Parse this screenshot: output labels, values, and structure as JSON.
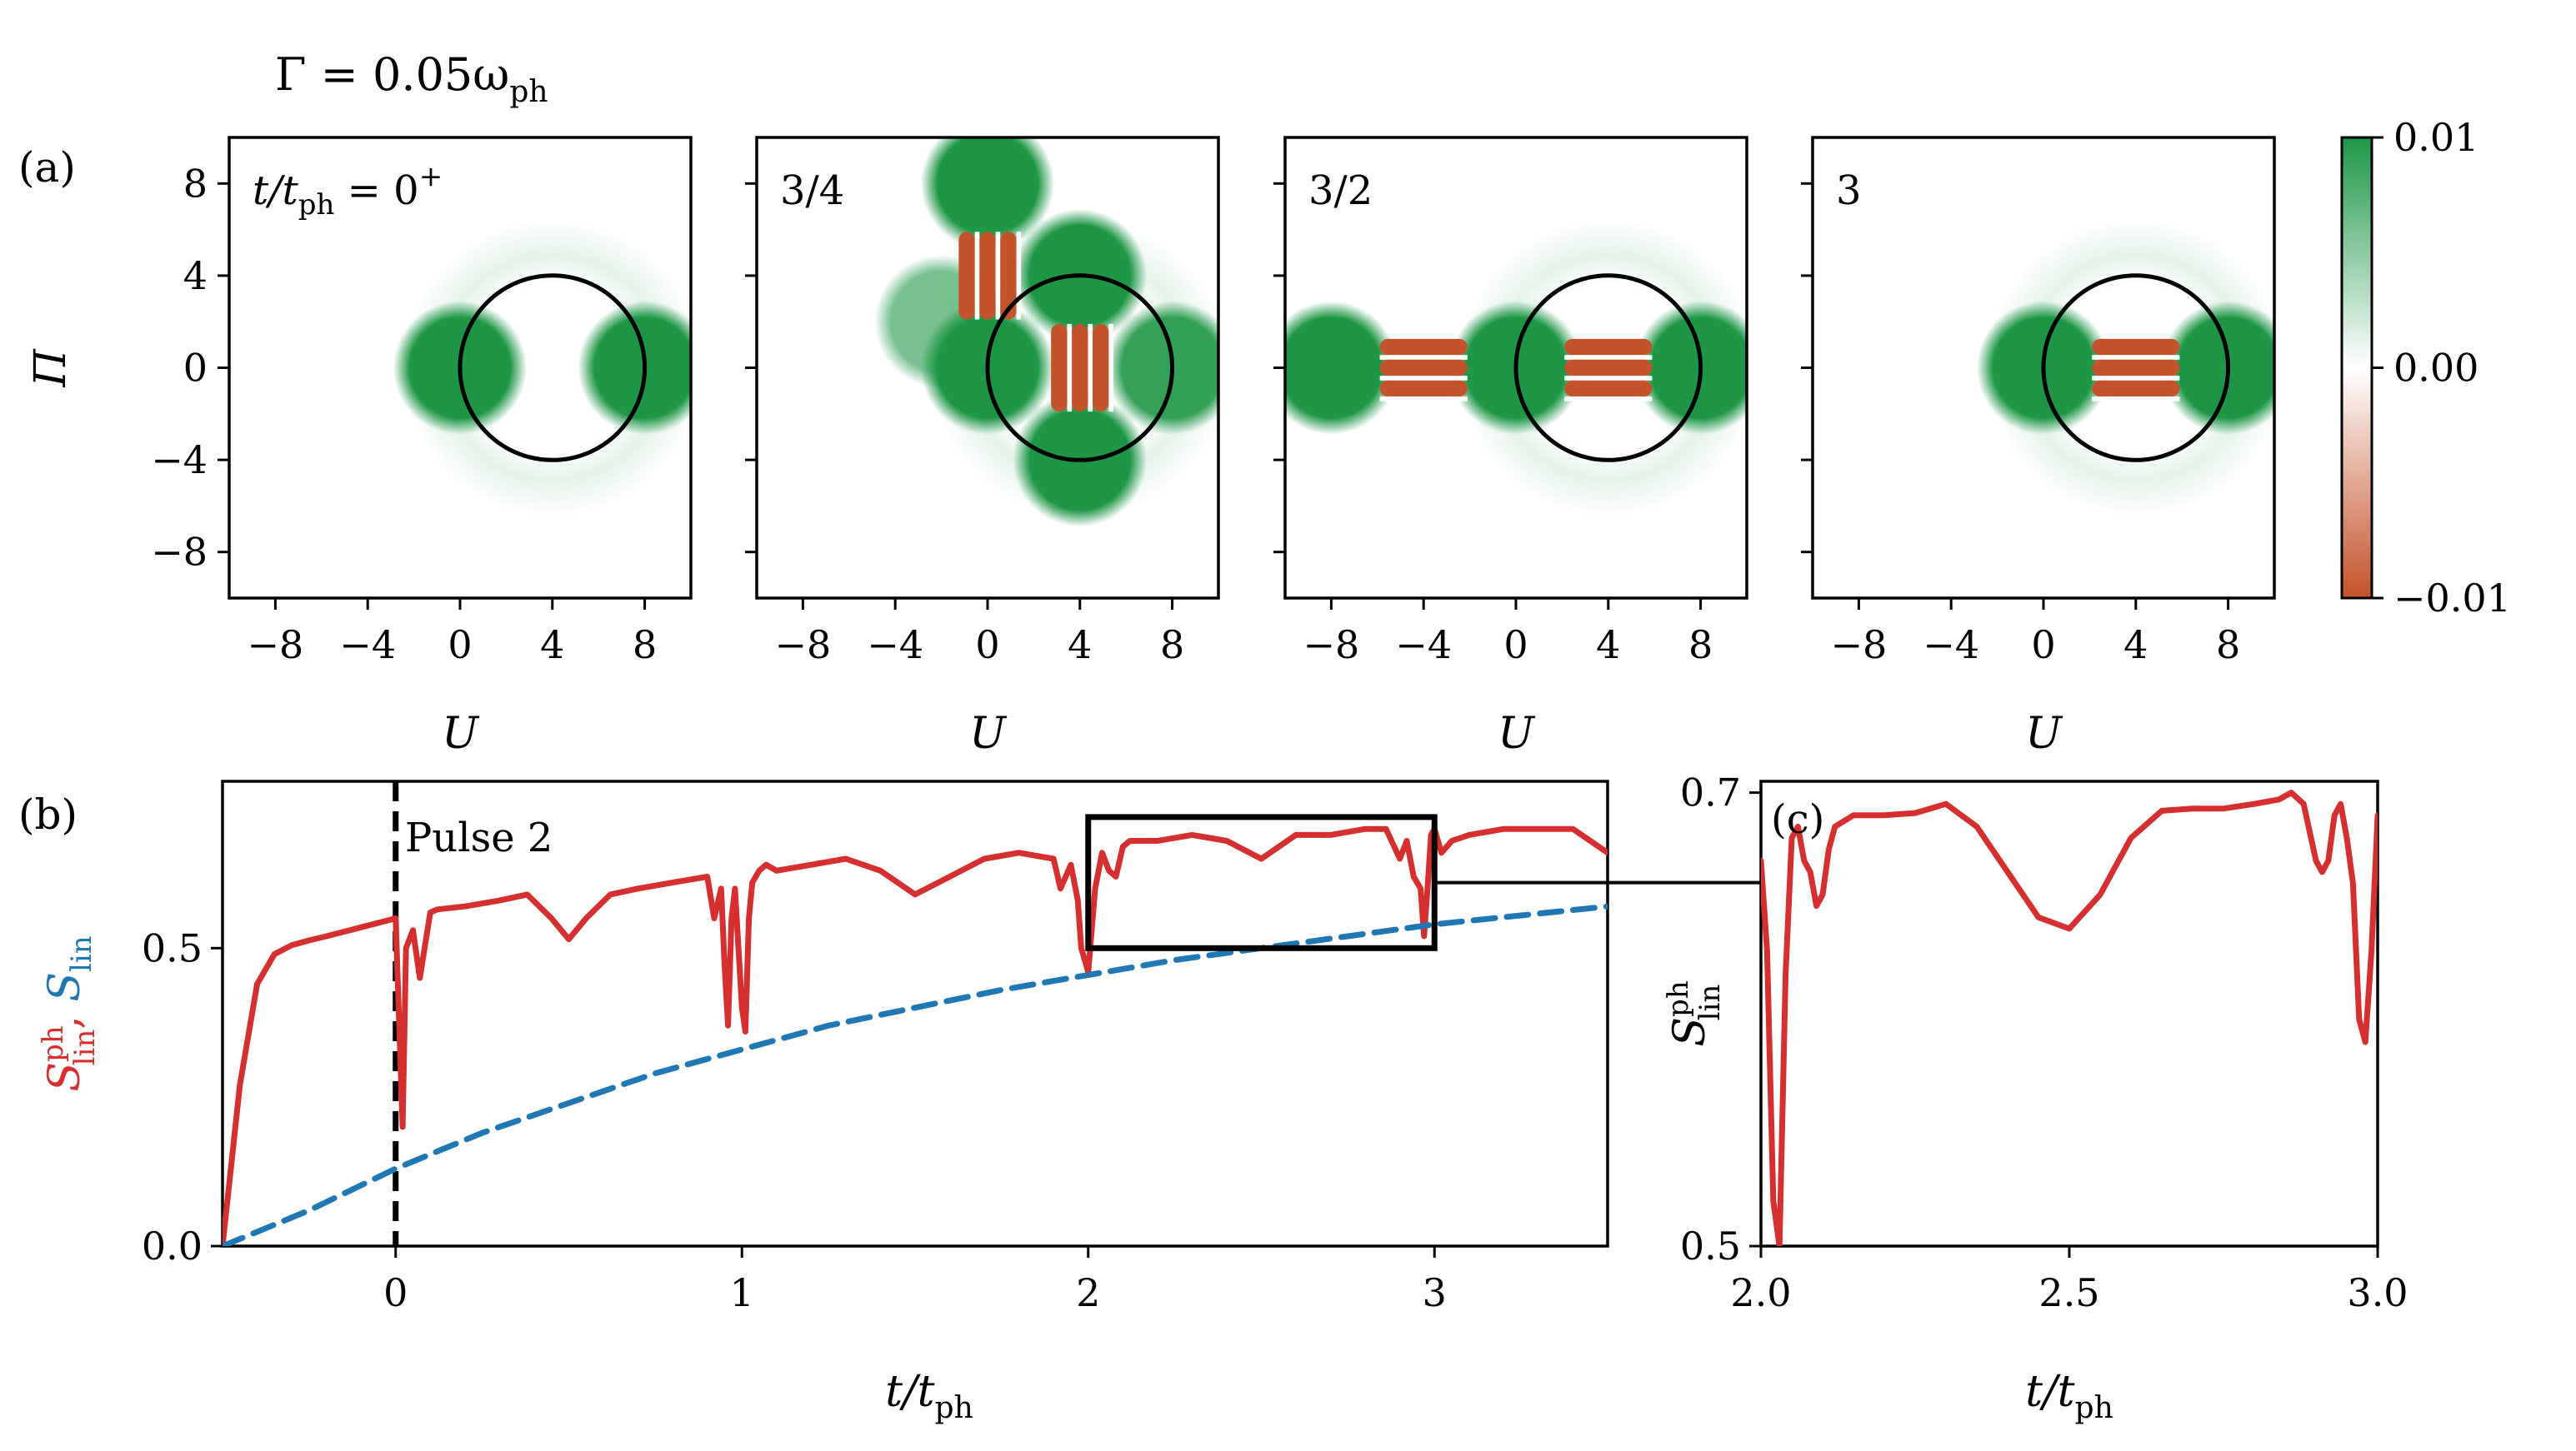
{
  "figure": {
    "title": "Γ = 0.05ω",
    "title_sub": "ph"
  },
  "panel_a": {
    "label": "(a)",
    "ylabel": "Π",
    "xlabel": "U",
    "x_ticks": [
      "−8",
      "−4",
      "0",
      "4",
      "8"
    ],
    "y_ticks": [
      "8",
      "4",
      "0",
      "−4",
      "−8"
    ],
    "x_tick_values": [
      -8,
      -4,
      0,
      4,
      8
    ],
    "y_tick_values": [
      8,
      4,
      0,
      -4,
      -8
    ],
    "xlim": [
      -10,
      10
    ],
    "ylim": [
      -10,
      10
    ],
    "circle": {
      "center_U": 4,
      "center_Pi": 0,
      "radius": 4
    },
    "subplots": [
      {
        "name": "t0",
        "label_prefix": "t/t",
        "label_sub": "ph",
        "label_suffix": " = 0",
        "label_sup": "+",
        "blobs": [
          [
            0,
            0,
            1
          ],
          [
            8,
            0,
            1
          ]
        ],
        "fringes": []
      },
      {
        "name": "t34",
        "label_text": "3/4",
        "blobs": [
          [
            0,
            8,
            1
          ],
          [
            -2,
            2,
            0.6
          ],
          [
            0,
            0,
            1
          ],
          [
            4,
            4,
            1
          ],
          [
            4,
            -4,
            1
          ],
          [
            8,
            0,
            0.9
          ]
        ],
        "fringes": [
          [
            4,
            0,
            "v"
          ],
          [
            0,
            4,
            "v"
          ]
        ]
      },
      {
        "name": "t32",
        "label_text": "3/2",
        "blobs": [
          [
            -8,
            0,
            1
          ],
          [
            0,
            0,
            1
          ],
          [
            8,
            0,
            1
          ]
        ],
        "fringes": [
          [
            -4,
            0,
            "h"
          ],
          [
            4,
            0,
            "h"
          ]
        ]
      },
      {
        "name": "t3",
        "label_text": "3",
        "blobs": [
          [
            0,
            0,
            1
          ],
          [
            8,
            0,
            1
          ]
        ],
        "fringes": [
          [
            4,
            0,
            "h"
          ]
        ]
      }
    ],
    "colorbar": {
      "ticks": [
        "0.01",
        "0.00",
        "−0.01"
      ],
      "values": [
        0.01,
        0.0,
        -0.01
      ],
      "color_positive": "#1e9646",
      "color_zero": "#ffffff",
      "color_negative": "#c4522a"
    }
  },
  "panel_b": {
    "label": "(b)",
    "annotation": "Pulse 2",
    "xlabel_main": "t/t",
    "xlabel_sub": "ph",
    "ylabel_red": "S",
    "ylabel_red_sup": "ph",
    "ylabel_red_sub": "lin",
    "ylabel_sep": ", ",
    "ylabel_blue": "S",
    "ylabel_blue_sub": "lin",
    "x_ticks": [
      "0",
      "1",
      "2",
      "3"
    ],
    "x_tick_values": [
      0,
      1,
      2,
      3
    ],
    "y_ticks": [
      "0.0",
      "0.5"
    ],
    "y_tick_values": [
      0.0,
      0.5
    ],
    "xlim": [
      -0.5,
      3.5
    ],
    "ylim": [
      0.0,
      0.78
    ],
    "vline_x": 0,
    "zoom_box": {
      "x": [
        2.0,
        3.0
      ],
      "y": [
        0.5,
        0.72
      ]
    }
  },
  "panel_c": {
    "label": "(c)",
    "xlabel_main": "t/t",
    "xlabel_sub": "ph",
    "ylabel": "S",
    "ylabel_sup": "ph",
    "ylabel_sub": "lin",
    "x_ticks": [
      "2.0",
      "2.5",
      "3.0"
    ],
    "x_tick_values": [
      2.0,
      2.5,
      3.0
    ],
    "y_ticks": [
      "0.7",
      "0.5"
    ],
    "y_tick_values": [
      0.7,
      0.5
    ],
    "xlim": [
      2.0,
      3.0
    ],
    "ylim": [
      0.5,
      0.705
    ]
  },
  "chart_data": [
    {
      "type": "line",
      "title": "(b)",
      "xlabel": "t/t_ph",
      "ylabel": "S_lin^ph, S_lin",
      "xlim": [
        -0.5,
        3.5
      ],
      "ylim": [
        0.0,
        0.78
      ],
      "series": [
        {
          "name": "S_lin^ph",
          "color": "#d62f2f",
          "style": "solid",
          "x": [
            -0.5,
            -0.45,
            -0.4,
            -0.35,
            -0.3,
            -0.25,
            -0.2,
            -0.1,
            0.0,
            0.02,
            0.03,
            0.05,
            0.07,
            0.1,
            0.12,
            0.2,
            0.3,
            0.38,
            0.45,
            0.5,
            0.55,
            0.62,
            0.7,
            0.8,
            0.9,
            0.92,
            0.94,
            0.95,
            0.96,
            0.97,
            0.98,
            1.0,
            1.01,
            1.02,
            1.03,
            1.05,
            1.07,
            1.1,
            1.2,
            1.3,
            1.4,
            1.5,
            1.6,
            1.7,
            1.8,
            1.9,
            1.92,
            1.95,
            1.97,
            1.98,
            2.0,
            2.02,
            2.04,
            2.06,
            2.08,
            2.1,
            2.12,
            2.2,
            2.3,
            2.4,
            2.5,
            2.6,
            2.7,
            2.8,
            2.86,
            2.9,
            2.92,
            2.94,
            2.96,
            2.97,
            2.98,
            2.99,
            3.0,
            3.02,
            3.05,
            3.1,
            3.2,
            3.3,
            3.4,
            3.5
          ],
          "y": [
            0.0,
            0.27,
            0.44,
            0.49,
            0.505,
            0.513,
            0.52,
            0.535,
            0.55,
            0.2,
            0.5,
            0.53,
            0.45,
            0.56,
            0.565,
            0.57,
            0.58,
            0.59,
            0.55,
            0.515,
            0.55,
            0.59,
            0.6,
            0.61,
            0.62,
            0.55,
            0.6,
            0.47,
            0.37,
            0.55,
            0.6,
            0.4,
            0.36,
            0.55,
            0.61,
            0.63,
            0.64,
            0.63,
            0.64,
            0.65,
            0.63,
            0.59,
            0.62,
            0.65,
            0.66,
            0.65,
            0.6,
            0.64,
            0.58,
            0.5,
            0.46,
            0.6,
            0.66,
            0.63,
            0.62,
            0.67,
            0.68,
            0.68,
            0.69,
            0.68,
            0.65,
            0.69,
            0.69,
            0.7,
            0.7,
            0.65,
            0.68,
            0.62,
            0.6,
            0.52,
            0.6,
            0.69,
            0.7,
            0.66,
            0.68,
            0.69,
            0.7,
            0.7,
            0.7,
            0.66
          ]
        },
        {
          "name": "S_lin",
          "color": "#1f77b4",
          "style": "dashed",
          "x": [
            -0.5,
            -0.25,
            0.0,
            0.25,
            0.5,
            0.75,
            1.0,
            1.25,
            1.5,
            1.75,
            2.0,
            2.25,
            2.5,
            2.75,
            3.0,
            3.25,
            3.5
          ],
          "y": [
            0.0,
            0.06,
            0.13,
            0.19,
            0.24,
            0.29,
            0.33,
            0.37,
            0.4,
            0.43,
            0.455,
            0.48,
            0.5,
            0.52,
            0.54,
            0.555,
            0.57
          ]
        }
      ]
    },
    {
      "type": "line",
      "title": "(c)",
      "xlabel": "t/t_ph",
      "ylabel": "S_lin^ph",
      "xlim": [
        2.0,
        3.0
      ],
      "ylim": [
        0.5,
        0.705
      ],
      "series": [
        {
          "name": "S_lin^ph",
          "color": "#d62f2f",
          "style": "solid",
          "x": [
            2.0,
            2.01,
            2.02,
            2.03,
            2.04,
            2.05,
            2.06,
            2.07,
            2.08,
            2.09,
            2.1,
            2.11,
            2.12,
            2.15,
            2.2,
            2.25,
            2.3,
            2.35,
            2.4,
            2.45,
            2.5,
            2.55,
            2.6,
            2.65,
            2.7,
            2.75,
            2.8,
            2.84,
            2.86,
            2.88,
            2.9,
            2.91,
            2.92,
            2.93,
            2.94,
            2.95,
            2.96,
            2.97,
            2.98,
            2.99,
            3.0
          ],
          "y": [
            0.67,
            0.63,
            0.52,
            0.5,
            0.62,
            0.68,
            0.685,
            0.67,
            0.665,
            0.65,
            0.655,
            0.675,
            0.685,
            0.69,
            0.69,
            0.691,
            0.695,
            0.685,
            0.665,
            0.645,
            0.64,
            0.655,
            0.68,
            0.692,
            0.693,
            0.693,
            0.695,
            0.697,
            0.7,
            0.695,
            0.67,
            0.665,
            0.67,
            0.69,
            0.695,
            0.68,
            0.66,
            0.6,
            0.59,
            0.63,
            0.69
          ]
        }
      ]
    }
  ]
}
